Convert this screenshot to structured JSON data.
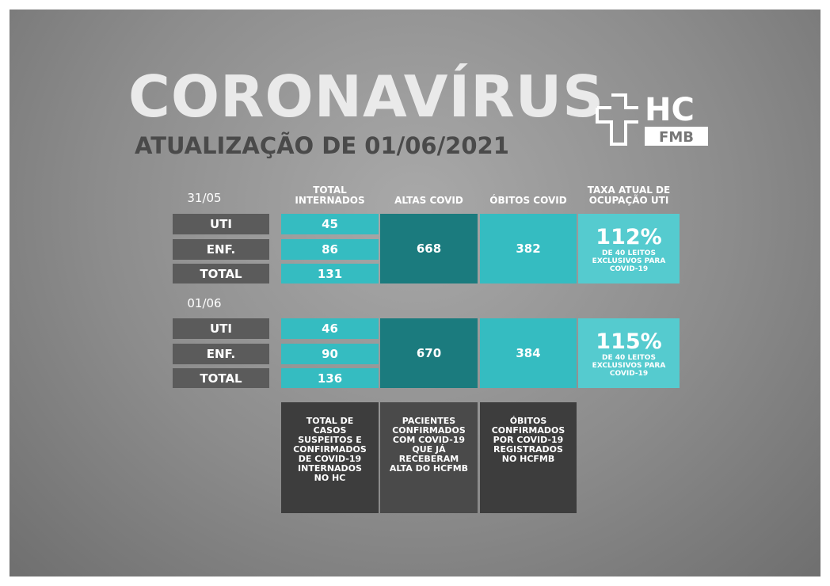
{
  "header": {
    "title": "CORONAVÍRUS",
    "subtitle": "ATUALIZAÇÃO DE 01/06/2021",
    "logo": {
      "top": "HC",
      "bottom": "FMB"
    }
  },
  "columns": [
    "TOTAL INTERNADOS",
    "ALTAS COVID",
    "ÓBITOS COVID",
    "TAXA ATUAL DE OCUPAÇÃO UTI"
  ],
  "sections": [
    {
      "date": "31/05",
      "rows": [
        {
          "label": "UTI",
          "total": 45
        },
        {
          "label": "ENF.",
          "total": 86
        },
        {
          "label": "TOTAL",
          "total": 131
        }
      ],
      "altas": 668,
      "obitos": 382,
      "taxa": {
        "value": "112%",
        "note": "DE 40 LEITOS EXCLUSIVOS PARA COVID-19"
      }
    },
    {
      "date": "01/06",
      "rows": [
        {
          "label": "UTI",
          "total": 46
        },
        {
          "label": "ENF.",
          "total": 90
        },
        {
          "label": "TOTAL",
          "total": 136
        }
      ],
      "altas": 670,
      "obitos": 384,
      "taxa": {
        "value": "115%",
        "note": "DE 40 LEITOS EXCLUSIVOS PARA COVID-19"
      }
    }
  ],
  "descriptions": [
    "TOTAL DE CASOS SUSPEITOS E CONFIRMADOS DE COVID-19 INTERNADOS NO HC",
    "PACIENTES CONFIRMADOS COM COVID-19 QUE JÁ RECEBERAM ALTA DO HCFMB",
    "ÓBITOS CONFIRMADOS POR COVID-19 REGISTRADOS NO HCFMB"
  ]
}
